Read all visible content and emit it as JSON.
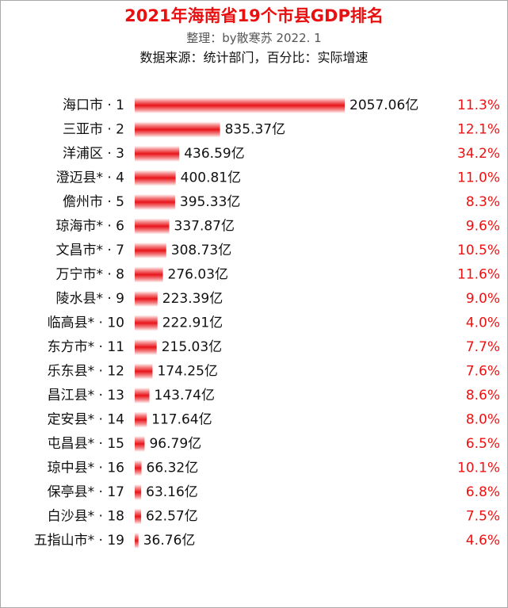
{
  "title": "2021年海南省19个市县GDP排名",
  "subtitle": "整理：by散寒苏  2022. 1",
  "source": "数据来源：统计部门，百分比：实际增速",
  "value_unit": "亿",
  "colors": {
    "bar": "#e8141a",
    "growth": "#ee1111",
    "label": "#111111",
    "border": "#a9a9a9"
  },
  "chart_data": {
    "type": "bar",
    "orientation": "horizontal",
    "title": "2021年海南省19个市县GDP排名",
    "xlabel": "",
    "ylabel": "",
    "categories": [
      "海口市 · 1",
      "三亚市 · 2",
      "洋浦区 · 3",
      "澄迈县* · 4",
      "儋州市 · 5",
      "琼海市* · 6",
      "文昌市* · 7",
      "万宁市* · 8",
      "陵水县* · 9",
      "临高县* · 10",
      "东方市* · 11",
      "乐东县* · 12",
      "昌江县* · 13",
      "定安县* · 14",
      "屯昌县* · 15",
      "琼中县* · 16",
      "保亭县* · 17",
      "白沙县* · 18",
      "五指山市* · 19"
    ],
    "series": [
      {
        "values": [
          2057.06,
          835.37,
          436.59,
          400.81,
          395.33,
          337.87,
          308.73,
          276.03,
          223.39,
          222.91,
          215.03,
          174.25,
          143.74,
          117.64,
          96.79,
          66.32,
          63.16,
          62.57,
          36.76
        ]
      }
    ],
    "growth": [
      "11.3%",
      "12.1%",
      "34.2%",
      "11.0%",
      "8.3%",
      "9.6%",
      "10.5%",
      "11.6%",
      "9.0%",
      "4.0%",
      "7.7%",
      "7.6%",
      "8.6%",
      "8.0%",
      "6.5%",
      "10.1%",
      "6.8%",
      "7.5%",
      "4.6%"
    ],
    "value_labels": [
      "2057.06亿",
      "835.37亿",
      "436.59亿",
      "400.81亿",
      "395.33亿",
      "337.87亿",
      "308.73亿",
      "276.03亿",
      "223.39亿",
      "222.91亿",
      "215.03亿",
      "174.25亿",
      "143.74亿",
      "117.64亿",
      "96.79亿",
      "66.32亿",
      "63.16亿",
      "62.57亿",
      "36.76亿"
    ],
    "xlim": [
      0,
      2057.06
    ],
    "grid": false,
    "legend": "none"
  }
}
